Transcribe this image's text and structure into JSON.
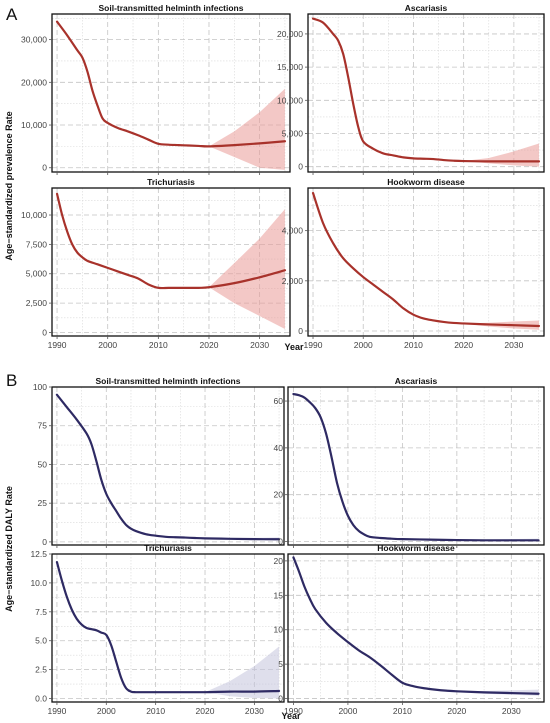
{
  "figure": {
    "section_a_letter": "A",
    "section_b_letter": "B",
    "section_a_ylabel": "Age−standardized prevalence Rate",
    "section_b_ylabel": "Age−standardized DALY Rate",
    "xlabel": "Year"
  },
  "colors": {
    "prevalence_line": "#a8322b",
    "prevalence_band": "#e99a98",
    "daly_line": "#2e2a63",
    "daly_band": "#c4c5dc"
  },
  "chart_data": [
    {
      "id": "prev-sth",
      "type": "line",
      "title": "Soil-transmitted helminth infections",
      "xlim": [
        1989,
        2036
      ],
      "ylim": [
        -1000,
        36000
      ],
      "xticks": [
        1990,
        2000,
        2010,
        2020,
        2030
      ],
      "yticks": [
        0,
        10000,
        20000,
        30000
      ],
      "ytick_labels": [
        "0",
        "10,000",
        "20,000",
        "30,000"
      ],
      "show_xtick_labels": false,
      "forecast_start": 2020,
      "series": [
        {
          "x": [
            1990,
            1992,
            1994,
            1995,
            1996,
            1997,
            1998,
            1999,
            2000,
            2002,
            2004,
            2006,
            2008,
            2010,
            2012,
            2014,
            2016,
            2018,
            2020,
            2025,
            2030,
            2035
          ],
          "y": [
            34200,
            31000,
            27500,
            25800,
            22500,
            18000,
            14500,
            11500,
            10500,
            9300,
            8500,
            7600,
            6600,
            5600,
            5400,
            5300,
            5200,
            5100,
            5000,
            5300,
            5700,
            6200
          ],
          "lower": [
            null,
            null,
            null,
            null,
            null,
            null,
            null,
            null,
            null,
            null,
            null,
            null,
            null,
            null,
            null,
            null,
            null,
            null,
            5000,
            2500,
            0,
            -500
          ],
          "upper": [
            null,
            null,
            null,
            null,
            null,
            null,
            null,
            null,
            null,
            null,
            null,
            null,
            null,
            null,
            null,
            null,
            null,
            null,
            5000,
            8500,
            13000,
            18500
          ]
        }
      ]
    },
    {
      "id": "prev-asc",
      "type": "line",
      "title": "Ascariasis",
      "xlim": [
        1989,
        2036
      ],
      "ylim": [
        -800,
        23000
      ],
      "xticks": [
        1990,
        2000,
        2010,
        2020,
        2030
      ],
      "yticks": [
        0,
        5000,
        10000,
        15000,
        20000
      ],
      "ytick_labels": [
        "0",
        "5,000",
        "10,000",
        "15,000",
        "20,000"
      ],
      "show_xtick_labels": false,
      "forecast_start": 2020,
      "series": [
        {
          "x": [
            1990,
            1992,
            1994,
            1995,
            1996,
            1997,
            1998,
            1999,
            2000,
            2002,
            2004,
            2006,
            2008,
            2010,
            2012,
            2014,
            2016,
            2018,
            2020,
            2025,
            2030,
            2035
          ],
          "y": [
            22300,
            21700,
            20000,
            19000,
            17000,
            13500,
            9500,
            6000,
            3800,
            2700,
            2000,
            1700,
            1400,
            1250,
            1200,
            1150,
            1000,
            900,
            850,
            800,
            800,
            800
          ],
          "lower": [
            null,
            null,
            null,
            null,
            null,
            null,
            null,
            null,
            null,
            null,
            null,
            null,
            null,
            null,
            null,
            null,
            null,
            null,
            850,
            500,
            200,
            0
          ],
          "upper": [
            null,
            null,
            null,
            null,
            null,
            null,
            null,
            null,
            null,
            null,
            null,
            null,
            null,
            null,
            null,
            null,
            null,
            null,
            850,
            1300,
            2300,
            3500
          ]
        }
      ]
    },
    {
      "id": "prev-tri",
      "type": "line",
      "title": "Trichuriasis",
      "xlim": [
        1989,
        2036
      ],
      "ylim": [
        -300,
        12300
      ],
      "xticks": [
        1990,
        2000,
        2010,
        2020,
        2030
      ],
      "yticks": [
        0,
        2500,
        5000,
        7500,
        10000
      ],
      "ytick_labels": [
        "0",
        "2,500",
        "5,000",
        "7,500",
        "10,000"
      ],
      "show_xtick_labels": true,
      "xtick_labels": [
        "1990",
        "2000",
        "2010",
        "2020",
        "2030"
      ],
      "forecast_start": 2020,
      "series": [
        {
          "x": [
            1990,
            1991,
            1992,
            1993,
            1994,
            1995,
            1996,
            1998,
            2000,
            2002,
            2004,
            2006,
            2008,
            2010,
            2012,
            2014,
            2016,
            2018,
            2020,
            2025,
            2030,
            2035
          ],
          "y": [
            11800,
            10000,
            8600,
            7500,
            6800,
            6400,
            6100,
            5800,
            5500,
            5200,
            4900,
            4600,
            4100,
            3800,
            3800,
            3800,
            3800,
            3800,
            3850,
            4200,
            4700,
            5300
          ],
          "lower": [
            null,
            null,
            null,
            null,
            null,
            null,
            null,
            null,
            null,
            null,
            null,
            null,
            null,
            null,
            null,
            null,
            null,
            null,
            3850,
            2500,
            1400,
            300
          ],
          "upper": [
            null,
            null,
            null,
            null,
            null,
            null,
            null,
            null,
            null,
            null,
            null,
            null,
            null,
            null,
            null,
            null,
            null,
            null,
            3850,
            5900,
            8000,
            10500
          ]
        }
      ]
    },
    {
      "id": "prev-hook",
      "type": "line",
      "title": "Hookworm disease",
      "xlim": [
        1989,
        2036
      ],
      "ylim": [
        -200,
        5700
      ],
      "xticks": [
        1990,
        2000,
        2010,
        2020,
        2030
      ],
      "yticks": [
        0,
        2000,
        4000
      ],
      "ytick_labels": [
        "0",
        "2,000",
        "4,000"
      ],
      "show_xtick_labels": true,
      "xtick_labels": [
        "1990",
        "2000",
        "2010",
        "2020",
        "2030"
      ],
      "forecast_start": 2020,
      "series": [
        {
          "x": [
            1990,
            1992,
            1994,
            1996,
            1998,
            2000,
            2002,
            2004,
            2006,
            2008,
            2010,
            2012,
            2014,
            2016,
            2018,
            2020,
            2025,
            2030,
            2035
          ],
          "y": [
            5500,
            4300,
            3500,
            2900,
            2500,
            2150,
            1850,
            1550,
            1250,
            900,
            650,
            500,
            420,
            360,
            320,
            300,
            260,
            230,
            200
          ],
          "lower": [
            null,
            null,
            null,
            null,
            null,
            null,
            null,
            null,
            null,
            null,
            null,
            null,
            null,
            null,
            null,
            300,
            180,
            100,
            50
          ],
          "upper": [
            null,
            null,
            null,
            null,
            null,
            null,
            null,
            null,
            null,
            null,
            null,
            null,
            null,
            null,
            null,
            300,
            330,
            380,
            420
          ]
        }
      ]
    },
    {
      "id": "daly-sth",
      "type": "line",
      "title": "Soil-transmitted helminth infections",
      "xlim": [
        1989,
        2036
      ],
      "ylim": [
        -2,
        100
      ],
      "xticks": [
        1990,
        2000,
        2010,
        2020,
        2030
      ],
      "yticks": [
        0,
        25,
        50,
        75,
        100
      ],
      "ytick_labels": [
        "0",
        "25",
        "50",
        "75",
        "100"
      ],
      "show_xtick_labels": false,
      "forecast_start": 2020,
      "series": [
        {
          "x": [
            1990,
            1992,
            1994,
            1996,
            1997,
            1998,
            1999,
            2000,
            2001,
            2002,
            2003,
            2004,
            2005,
            2006,
            2008,
            2010,
            2012,
            2014,
            2016,
            2018,
            2020,
            2025,
            2030,
            2035
          ],
          "y": [
            95,
            87,
            79,
            70,
            63,
            52,
            40,
            31,
            25,
            20,
            15,
            11,
            8.5,
            7,
            5,
            4,
            3.3,
            3,
            2.8,
            2.5,
            2.3,
            2,
            1.8,
            1.7
          ],
          "lower": [
            null,
            null,
            null,
            null,
            null,
            null,
            null,
            null,
            null,
            null,
            null,
            null,
            null,
            null,
            null,
            null,
            null,
            null,
            null,
            null,
            2.3,
            1.6,
            1.2,
            0.9
          ],
          "upper": [
            null,
            null,
            null,
            null,
            null,
            null,
            null,
            null,
            null,
            null,
            null,
            null,
            null,
            null,
            null,
            null,
            null,
            null,
            null,
            null,
            2.3,
            2.4,
            2.6,
            2.9
          ]
        }
      ]
    },
    {
      "id": "daly-asc",
      "type": "line",
      "title": "Ascariasis",
      "xlim": [
        1989,
        2036
      ],
      "ylim": [
        -1.5,
        66
      ],
      "xticks": [
        1990,
        2000,
        2010,
        2020,
        2030
      ],
      "yticks": [
        0,
        20,
        40,
        60
      ],
      "ytick_labels": [
        "0",
        "20",
        "40",
        "60"
      ],
      "show_xtick_labels": false,
      "forecast_start": 2020,
      "series": [
        {
          "x": [
            1990,
            1991,
            1992,
            1993,
            1994,
            1995,
            1996,
            1997,
            1998,
            1999,
            2000,
            2001,
            2002,
            2003,
            2004,
            2006,
            2008,
            2010,
            2015,
            2020,
            2025,
            2030,
            2035
          ],
          "y": [
            63,
            62.5,
            61.5,
            59.5,
            57,
            53,
            46,
            36,
            25,
            17,
            11,
            7,
            4.5,
            3,
            2,
            1.5,
            1.2,
            1,
            0.8,
            0.6,
            0.5,
            0.5,
            0.5
          ],
          "lower": [
            null,
            null,
            null,
            null,
            null,
            null,
            null,
            null,
            null,
            null,
            null,
            null,
            null,
            null,
            null,
            null,
            null,
            null,
            null,
            0.6,
            0.3,
            0.15,
            0.05
          ],
          "upper": [
            null,
            null,
            null,
            null,
            null,
            null,
            null,
            null,
            null,
            null,
            null,
            null,
            null,
            null,
            null,
            null,
            null,
            null,
            null,
            0.6,
            0.8,
            1.0,
            1.2
          ]
        }
      ]
    },
    {
      "id": "daly-tri",
      "type": "line",
      "title": "Trichuriasis",
      "xlim": [
        1989,
        2036
      ],
      "ylim": [
        -0.3,
        12.5
      ],
      "xticks": [
        1990,
        2000,
        2010,
        2020,
        2030
      ],
      "yticks": [
        0,
        2.5,
        5,
        7.5,
        10,
        12.5
      ],
      "ytick_labels": [
        "0.0",
        "2.5",
        "5.0",
        "7.5",
        "10.0",
        "12.5"
      ],
      "show_xtick_labels": true,
      "xtick_labels": [
        "1990",
        "2000",
        "2010",
        "2020",
        "2030"
      ],
      "forecast_start": 2020,
      "series": [
        {
          "x": [
            1990,
            1991,
            1992,
            1993,
            1994,
            1995,
            1996,
            1997,
            1998,
            1999,
            2000,
            2001,
            2002,
            2003,
            2004,
            2005,
            2006,
            2008,
            2010,
            2015,
            2020,
            2025,
            2030,
            2035
          ],
          "y": [
            11.8,
            10.2,
            8.8,
            7.7,
            6.9,
            6.4,
            6.1,
            6.0,
            5.9,
            5.7,
            5.5,
            4.6,
            3.2,
            1.8,
            0.9,
            0.6,
            0.55,
            0.55,
            0.55,
            0.55,
            0.55,
            0.6,
            0.6,
            0.65
          ],
          "lower": [
            null,
            null,
            null,
            null,
            null,
            null,
            null,
            null,
            null,
            null,
            null,
            null,
            null,
            null,
            null,
            null,
            null,
            null,
            null,
            null,
            0.55,
            0.2,
            0.05,
            0
          ],
          "upper": [
            null,
            null,
            null,
            null,
            null,
            null,
            null,
            null,
            null,
            null,
            null,
            null,
            null,
            null,
            null,
            null,
            null,
            null,
            null,
            null,
            0.55,
            1.5,
            2.8,
            4.5
          ]
        }
      ]
    },
    {
      "id": "daly-hook",
      "type": "line",
      "title": "Hookworm disease",
      "xlim": [
        1989,
        2036
      ],
      "ylim": [
        -0.5,
        21
      ],
      "xticks": [
        1990,
        2000,
        2010,
        2020,
        2030
      ],
      "yticks": [
        0,
        5,
        10,
        15,
        20
      ],
      "ytick_labels": [
        "0",
        "5",
        "10",
        "15",
        "20"
      ],
      "show_xtick_labels": true,
      "xtick_labels": [
        "1990",
        "2000",
        "2010",
        "2020",
        "2030"
      ],
      "forecast_start": 2020,
      "series": [
        {
          "x": [
            1990,
            1991,
            1992,
            1993,
            1994,
            1996,
            1998,
            2000,
            2002,
            2004,
            2006,
            2008,
            2010,
            2012,
            2014,
            2016,
            2018,
            2020,
            2025,
            2030,
            2035
          ],
          "y": [
            20.5,
            18.5,
            16.3,
            14.5,
            13,
            11,
            9.5,
            8.2,
            7,
            6,
            4.8,
            3.5,
            2.3,
            1.8,
            1.5,
            1.3,
            1.15,
            1.05,
            0.9,
            0.8,
            0.7
          ],
          "lower": [
            null,
            null,
            null,
            null,
            null,
            null,
            null,
            null,
            null,
            null,
            null,
            null,
            null,
            null,
            null,
            null,
            null,
            1.05,
            0.7,
            0.55,
            0.4
          ],
          "upper": [
            null,
            null,
            null,
            null,
            null,
            null,
            null,
            null,
            null,
            null,
            null,
            null,
            null,
            null,
            null,
            null,
            null,
            1.05,
            1.1,
            1.2,
            1.3
          ]
        }
      ]
    }
  ]
}
